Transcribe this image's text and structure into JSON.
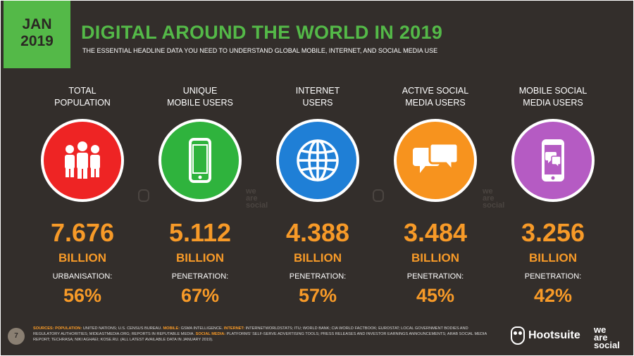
{
  "header": {
    "badge_month": "JAN",
    "badge_year": "2019",
    "title": "DIGITAL AROUND THE WORLD IN 2019",
    "subtitle": "THE ESSENTIAL HEADLINE DATA YOU NEED TO UNDERSTAND GLOBAL MOBILE, INTERNET, AND SOCIAL MEDIA USE"
  },
  "stats": [
    {
      "label_line1": "TOTAL",
      "label_line2": "POPULATION",
      "value": "7.676",
      "unit": "BILLION",
      "metric_label": "URBANISATION:",
      "metric_value": "56%",
      "color": "#ee2424",
      "icon": "people-icon"
    },
    {
      "label_line1": "UNIQUE",
      "label_line2": "MOBILE USERS",
      "value": "5.112",
      "unit": "BILLION",
      "metric_label": "PENETRATION:",
      "metric_value": "67%",
      "color": "#2fb33d",
      "icon": "mobile-phone-icon"
    },
    {
      "label_line1": "INTERNET",
      "label_line2": "USERS",
      "value": "4.388",
      "unit": "BILLION",
      "metric_label": "PENETRATION:",
      "metric_value": "57%",
      "color": "#1f7fd6",
      "icon": "globe-icon"
    },
    {
      "label_line1": "ACTIVE SOCIAL",
      "label_line2": "MEDIA USERS",
      "value": "3.484",
      "unit": "BILLION",
      "metric_label": "PENETRATION:",
      "metric_value": "45%",
      "color": "#f7931e",
      "icon": "chat-bubbles-icon"
    },
    {
      "label_line1": "MOBILE SOCIAL",
      "label_line2": "MEDIA USERS",
      "value": "3.256",
      "unit": "BILLION",
      "metric_label": "PENETRATION:",
      "metric_value": "42%",
      "color": "#b55bc3",
      "icon": "mobile-chat-icon"
    }
  ],
  "watermark": {
    "line1": "we",
    "line2": "are",
    "line3": "social"
  },
  "footer": {
    "page_number": "7",
    "sources_label": "SOURCES:",
    "src_population_label": "POPULATION:",
    "src_population_text": " UNITED NATIONS; U.S. CENSUS BUREAU. ",
    "src_mobile_label": "MOBILE:",
    "src_mobile_text": " GSMA INTELLIGENCE. ",
    "src_internet_label": "INTERNET:",
    "src_internet_text": " INTERNETWORLDSTATS; ITU; WORLD BANK; CIA WORLD FACTBOOK; EUROSTAT; LOCAL GOVERNMENT BODIES AND REGULATORY AUTHORITIES; MIDEASTMEDIA.ORG; REPORTS IN REPUTABLE MEDIA. ",
    "src_social_label": "SOCIAL MEDIA:",
    "src_social_text": " PLATFORMS' SELF-SERVE ADVERTISING TOOLS; PRESS RELEASES AND INVESTOR EARNINGS ANNOUNCEMENTS; ARAB SOCIAL MEDIA REPORT; TECHRASA; NIKI AGHAEI; KOSE.RU. (ALL LATEST AVAILABLE DATA IN JANUARY 2019).",
    "brand_hootsuite": "Hootsuite",
    "brand_was1": "we",
    "brand_was2": "are",
    "brand_was3": "social"
  }
}
